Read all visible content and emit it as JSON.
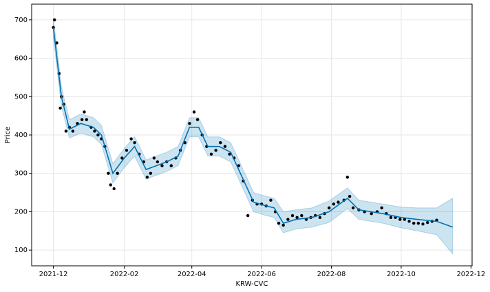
{
  "chart_data": {
    "type": "line",
    "x_label": "KRW-CVC",
    "y_label": "Price",
    "grid": true,
    "xlim": [
      "2021-11-12",
      "2022-12-02"
    ],
    "xticks": [
      "2021-12",
      "2022-02",
      "2022-04",
      "2022-06",
      "2022-08",
      "2022-10",
      "2022-12"
    ],
    "ylim": [
      59,
      741
    ],
    "yticks": [
      100,
      200,
      300,
      400,
      500,
      600,
      700
    ],
    "series": [
      {
        "type": "scatter",
        "color": "#000000",
        "x": [
          "2021-12-01",
          "2021-12-02",
          "2021-12-04",
          "2021-12-06",
          "2021-12-07",
          "2021-12-08",
          "2021-12-10",
          "2021-12-12",
          "2021-12-15",
          "2021-12-18",
          "2021-12-22",
          "2021-12-26",
          "2021-12-28",
          "2021-12-30",
          "2022-01-03",
          "2022-01-06",
          "2022-01-09",
          "2022-01-12",
          "2022-01-15",
          "2022-01-18",
          "2022-01-20",
          "2022-01-23",
          "2022-01-26",
          "2022-01-30",
          "2022-02-03",
          "2022-02-07",
          "2022-02-10",
          "2022-02-14",
          "2022-02-18",
          "2022-02-21",
          "2022-02-24",
          "2022-02-27",
          "2022-03-02",
          "2022-03-06",
          "2022-03-10",
          "2022-03-14",
          "2022-03-18",
          "2022-03-22",
          "2022-03-26",
          "2022-03-30",
          "2022-04-03",
          "2022-04-06",
          "2022-04-10",
          "2022-04-14",
          "2022-04-18",
          "2022-04-22",
          "2022-04-26",
          "2022-04-30",
          "2022-05-04",
          "2022-05-08",
          "2022-05-12",
          "2022-05-16",
          "2022-05-20",
          "2022-05-24",
          "2022-05-28",
          "2022-06-01",
          "2022-06-05",
          "2022-06-09",
          "2022-06-13",
          "2022-06-16",
          "2022-06-20",
          "2022-06-24",
          "2022-06-28",
          "2022-07-02",
          "2022-07-06",
          "2022-07-10",
          "2022-07-14",
          "2022-07-18",
          "2022-07-22",
          "2022-07-26",
          "2022-07-30",
          "2022-08-03",
          "2022-08-07",
          "2022-08-12",
          "2022-08-15",
          "2022-08-17",
          "2022-08-20",
          "2022-08-25",
          "2022-08-30",
          "2022-09-05",
          "2022-09-10",
          "2022-09-14",
          "2022-09-18",
          "2022-09-22",
          "2022-09-26",
          "2022-09-30",
          "2022-10-04",
          "2022-10-08",
          "2022-10-12",
          "2022-10-16",
          "2022-10-20",
          "2022-10-24",
          "2022-10-28",
          "2022-11-01"
        ],
        "values": [
          680,
          700,
          640,
          560,
          470,
          500,
          480,
          410,
          420,
          410,
          430,
          440,
          460,
          440,
          420,
          410,
          400,
          390,
          370,
          300,
          270,
          260,
          300,
          340,
          360,
          390,
          380,
          350,
          330,
          290,
          300,
          340,
          330,
          320,
          330,
          320,
          340,
          360,
          380,
          430,
          460,
          440,
          400,
          370,
          350,
          360,
          380,
          370,
          350,
          340,
          320,
          280,
          190,
          230,
          220,
          220,
          215,
          230,
          200,
          170,
          165,
          180,
          190,
          185,
          190,
          180,
          185,
          190,
          185,
          195,
          210,
          220,
          225,
          230,
          290,
          240,
          210,
          205,
          200,
          195,
          200,
          210,
          195,
          185,
          185,
          180,
          180,
          175,
          170,
          170,
          168,
          172,
          175,
          178
        ]
      },
      {
        "type": "line",
        "color": "#0072b2",
        "x": [
          "2021-12-01",
          "2021-12-08",
          "2021-12-15",
          "2021-12-25",
          "2022-01-05",
          "2022-01-12",
          "2022-01-22",
          "2022-02-01",
          "2022-02-10",
          "2022-02-20",
          "2022-03-01",
          "2022-03-10",
          "2022-03-20",
          "2022-03-30",
          "2022-04-07",
          "2022-04-15",
          "2022-04-25",
          "2022-05-05",
          "2022-05-15",
          "2022-05-25",
          "2022-06-05",
          "2022-06-12",
          "2022-06-20",
          "2022-07-01",
          "2022-07-15",
          "2022-07-30",
          "2022-08-15",
          "2022-08-25",
          "2022-09-15",
          "2022-10-01",
          "2022-10-15",
          "2022-11-01",
          "2022-11-15"
        ],
        "values": [
          680,
          500,
          415,
          430,
          420,
          400,
          300,
          340,
          370,
          310,
          320,
          330,
          345,
          420,
          420,
          370,
          370,
          355,
          290,
          225,
          215,
          210,
          170,
          180,
          185,
          200,
          235,
          205,
          195,
          185,
          180,
          175,
          160
        ],
        "lower": [
          655,
          475,
          392,
          405,
          395,
          375,
          275,
          315,
          345,
          285,
          295,
          305,
          320,
          395,
          395,
          345,
          345,
          330,
          265,
          200,
          190,
          185,
          145,
          155,
          160,
          172,
          208,
          180,
          170,
          158,
          150,
          140,
          90
        ],
        "upper": [
          705,
          525,
          440,
          455,
          445,
          425,
          325,
          365,
          395,
          335,
          345,
          355,
          370,
          445,
          445,
          395,
          395,
          380,
          315,
          250,
          240,
          235,
          200,
          205,
          210,
          228,
          262,
          230,
          220,
          212,
          210,
          210,
          235
        ]
      }
    ]
  }
}
